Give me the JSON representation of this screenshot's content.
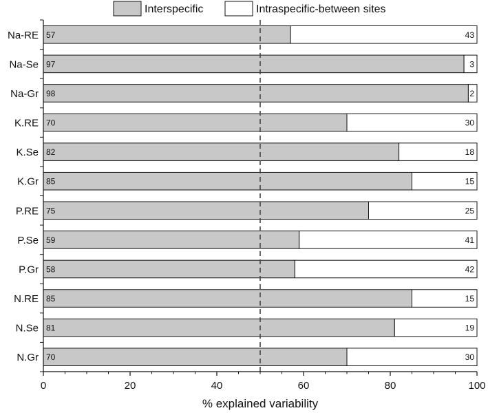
{
  "chart_data": {
    "type": "bar",
    "orientation": "horizontal",
    "stacked": true,
    "categories": [
      "Na-RE",
      "Na-Se",
      "Na-Gr",
      "K.RE",
      "K.Se",
      "K.Gr",
      "P.RE",
      "P.Se",
      "P.Gr",
      "N.RE",
      "N.Se",
      "N.Gr"
    ],
    "series": [
      {
        "name": "Interspecific",
        "color": "#c8c8c8",
        "values": [
          57,
          97,
          98,
          70,
          82,
          85,
          75,
          59,
          58,
          85,
          81,
          70
        ],
        "labels": [
          "57",
          "97",
          "98",
          "70",
          "82",
          "85",
          "75",
          "59",
          "58",
          "85",
          "81",
          "70"
        ]
      },
      {
        "name": "Intraspecific-between sites",
        "color": "#ffffff",
        "values": [
          43,
          3,
          2,
          30,
          18,
          15,
          25,
          41,
          42,
          15,
          19,
          30
        ],
        "labels": [
          "43",
          "3",
          "2",
          "30",
          "18",
          "15",
          "25",
          "41",
          "42",
          "15",
          "19",
          "30"
        ]
      }
    ],
    "xlabel": "% explained variability",
    "xlim": [
      0,
      100
    ],
    "xticks": [
      0,
      20,
      40,
      60,
      80,
      100
    ],
    "xtick_labels": [
      "0",
      "20",
      "40",
      "60",
      "80",
      "100"
    ],
    "reference_line": {
      "x": 50,
      "style": "dashed"
    },
    "legend": {
      "position": "top"
    }
  }
}
